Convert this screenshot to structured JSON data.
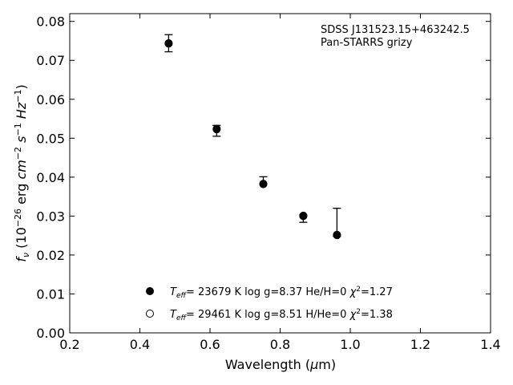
{
  "chart_data": {
    "type": "scatter",
    "xlabel": "Wavelength (μm)",
    "ylabel": "f_ν (10^-26 erg cm^-2 s^-1 Hz^-1)",
    "xlim": [
      0.2,
      1.4
    ],
    "ylim": [
      0.0,
      0.082
    ],
    "x_ticks": [
      0.2,
      0.4,
      0.6,
      0.8,
      1.0,
      1.2,
      1.4
    ],
    "y_ticks": [
      0.0,
      0.01,
      0.02,
      0.03,
      0.04,
      0.05,
      0.06,
      0.07,
      0.08
    ],
    "x_tick_labels": [
      "0.2",
      "0.4",
      "0.6",
      "0.8",
      "1.0",
      "1.2",
      "1.4"
    ],
    "y_tick_labels": [
      "0.00",
      "0.01",
      "0.02",
      "0.03",
      "0.04",
      "0.05",
      "0.06",
      "0.07",
      "0.08"
    ],
    "grid": false,
    "annotation": {
      "object": "SDSS J131523.15+463242.5",
      "survey": "Pan-STARRS grizy"
    },
    "observed": {
      "x": [
        0.482,
        0.619,
        0.752,
        0.866,
        0.962
      ],
      "y": [
        0.0744,
        0.0521,
        0.0385,
        0.0299,
        0.025
      ],
      "y_err_upper": [
        0.0766,
        0.0533,
        0.0401,
        0.0303,
        0.032
      ],
      "y_err_lower": [
        0.0722,
        0.0505,
        0.0382,
        0.0284,
        0.0248
      ]
    },
    "series": [
      {
        "name": "Teff= 23679 K  log g=8.37  He/H=0  χ2=1.27",
        "marker": "filled-circle",
        "x": [
          0.482,
          0.619,
          0.752,
          0.866,
          0.962
        ],
        "y": [
          0.0744,
          0.0523,
          0.0383,
          0.03,
          0.0252
        ]
      },
      {
        "name": "Teff= 29461 K  log g=8.51  H/He=0  χ2=1.38",
        "marker": "open-circle",
        "x": [
          0.482,
          0.619,
          0.752,
          0.866,
          0.962
        ],
        "y": [
          0.0743,
          0.0524,
          0.0382,
          0.0301,
          0.0251
        ]
      }
    ],
    "legend": {
      "placement": "bottom-left",
      "entries": [
        {
          "marker": "filled-circle",
          "teff_value": "= 23679 K  log g=8.37  He/H=0  ",
          "chi_value": "=1.27"
        },
        {
          "marker": "open-circle",
          "teff_value": "= 29461 K  log g=8.51  H/He=0  ",
          "chi_value": "=1.38"
        }
      ]
    },
    "colors": {
      "marker": "#000000",
      "axes": "#000000",
      "background": "#ffffff"
    }
  }
}
